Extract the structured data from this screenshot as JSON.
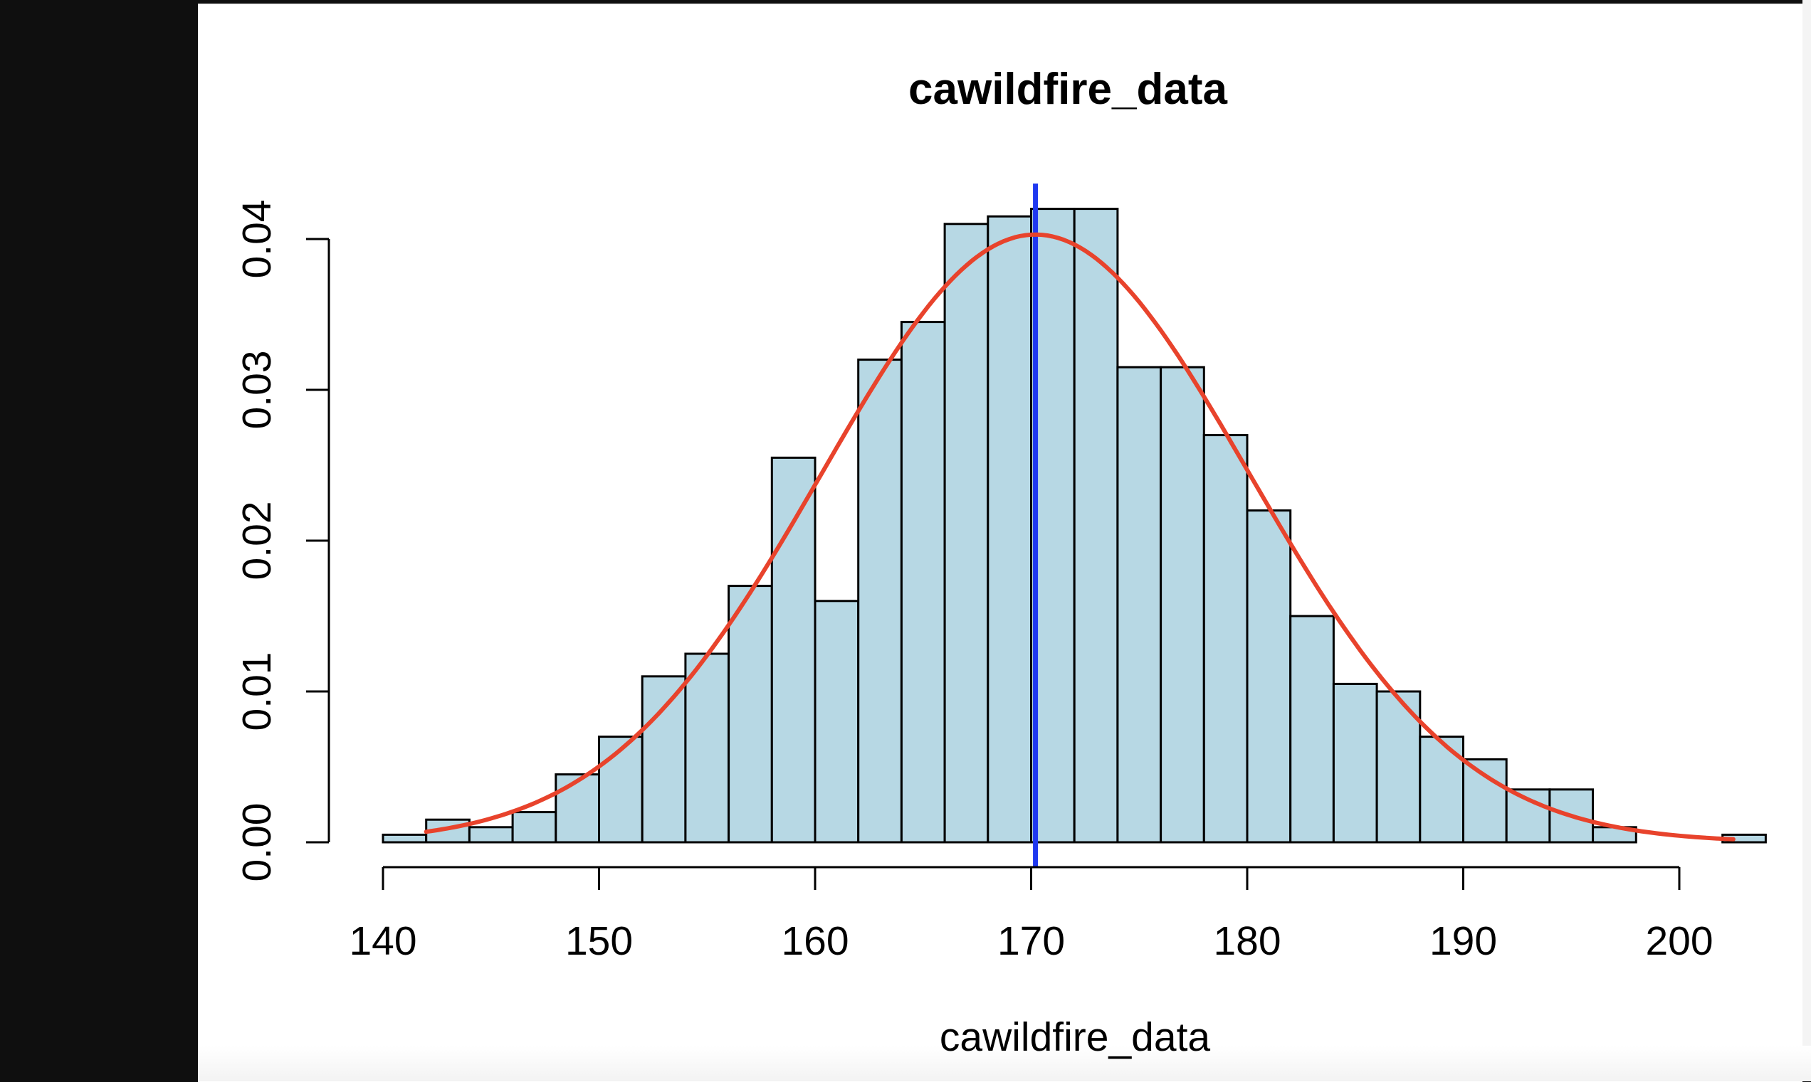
{
  "chart_data": {
    "type": "bar",
    "title": "cawildfire_data",
    "xlabel": "cawildfire_data",
    "ylabel": "",
    "xlim": [
      140,
      204
    ],
    "ylim": [
      0,
      0.04
    ],
    "x_ticks": [
      "140",
      "150",
      "160",
      "170",
      "180",
      "190",
      "200"
    ],
    "y_ticks": [
      "0.00",
      "0.01",
      "0.02",
      "0.03",
      "0.04"
    ],
    "bin_width": 2,
    "bins": [
      {
        "start": 140,
        "end": 142,
        "density": 0.0005
      },
      {
        "start": 142,
        "end": 144,
        "density": 0.0015
      },
      {
        "start": 144,
        "end": 146,
        "density": 0.001
      },
      {
        "start": 146,
        "end": 148,
        "density": 0.002
      },
      {
        "start": 148,
        "end": 150,
        "density": 0.0045
      },
      {
        "start": 150,
        "end": 152,
        "density": 0.007
      },
      {
        "start": 152,
        "end": 154,
        "density": 0.011
      },
      {
        "start": 154,
        "end": 156,
        "density": 0.0125
      },
      {
        "start": 156,
        "end": 158,
        "density": 0.017
      },
      {
        "start": 158,
        "end": 160,
        "density": 0.0255
      },
      {
        "start": 160,
        "end": 162,
        "density": 0.016
      },
      {
        "start": 162,
        "end": 164,
        "density": 0.032
      },
      {
        "start": 164,
        "end": 166,
        "density": 0.0345
      },
      {
        "start": 166,
        "end": 168,
        "density": 0.041
      },
      {
        "start": 168,
        "end": 170,
        "density": 0.0415
      },
      {
        "start": 170,
        "end": 172,
        "density": 0.042
      },
      {
        "start": 172,
        "end": 174,
        "density": 0.042
      },
      {
        "start": 174,
        "end": 176,
        "density": 0.0315
      },
      {
        "start": 176,
        "end": 178,
        "density": 0.0315
      },
      {
        "start": 178,
        "end": 180,
        "density": 0.027
      },
      {
        "start": 180,
        "end": 182,
        "density": 0.022
      },
      {
        "start": 182,
        "end": 184,
        "density": 0.015
      },
      {
        "start": 184,
        "end": 186,
        "density": 0.0105
      },
      {
        "start": 186,
        "end": 188,
        "density": 0.01
      },
      {
        "start": 188,
        "end": 190,
        "density": 0.007
      },
      {
        "start": 190,
        "end": 192,
        "density": 0.0055
      },
      {
        "start": 192,
        "end": 194,
        "density": 0.0035
      },
      {
        "start": 194,
        "end": 196,
        "density": 0.0035
      },
      {
        "start": 196,
        "end": 198,
        "density": 0.001
      },
      {
        "start": 198,
        "end": 200,
        "density": 0.0
      },
      {
        "start": 200,
        "end": 202,
        "density": 0.0
      },
      {
        "start": 202,
        "end": 204,
        "density": 0.0005
      }
    ],
    "normal_curve": {
      "mean": 170.2,
      "sd": 9.9,
      "x_range": [
        142,
        202.5
      ]
    },
    "mean_line_x": 170.2,
    "grid": false,
    "legend": "none",
    "colors": {
      "bar_fill": "#b7d8e4",
      "bar_stroke": "#000000",
      "curve": "#e8432c",
      "mean_line": "#1f38f0"
    }
  }
}
